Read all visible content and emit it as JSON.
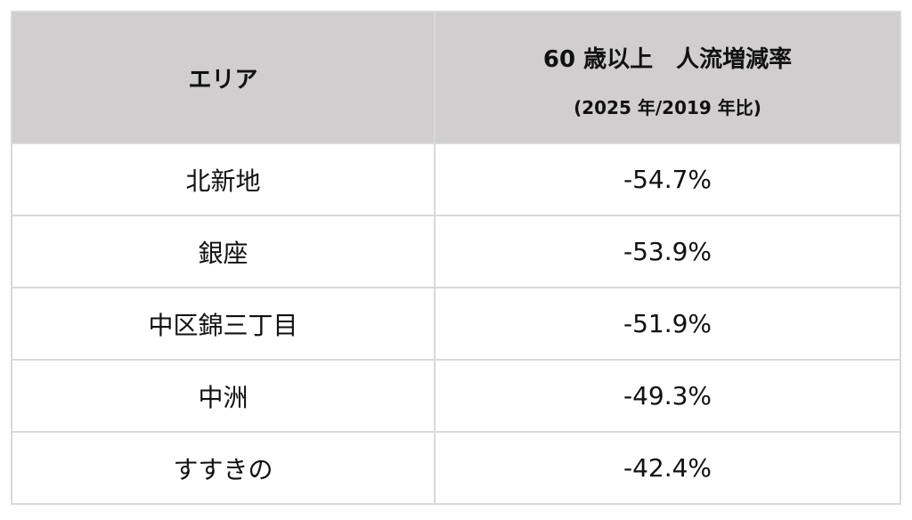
{
  "table": {
    "header": {
      "area": "エリア",
      "rate_title": "60 歳以上　人流増減率",
      "rate_subtitle": "(2025 年/2019 年比)"
    },
    "rows": [
      [
        "北新地",
        "-54.7%"
      ],
      [
        "銀座",
        "-53.9%"
      ],
      [
        "中区錦三丁目",
        "-51.9%"
      ],
      [
        "中洲",
        "-49.3%"
      ],
      [
        "すすきの",
        "-42.4%"
      ]
    ]
  }
}
